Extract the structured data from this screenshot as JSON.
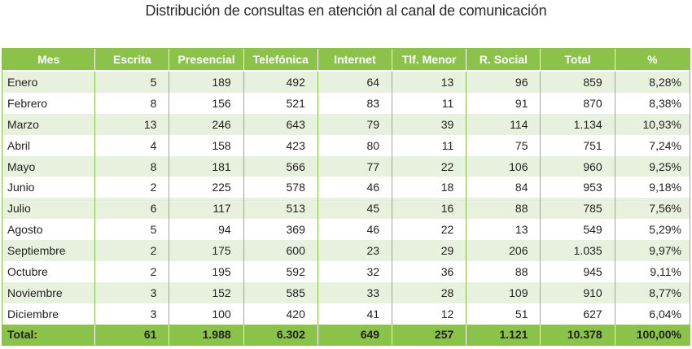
{
  "title": "Distribución de consultas en atención al canal de comunicación",
  "colors": {
    "header_bg": "#8bc34a",
    "header_text": "#ffffff",
    "row_alt_bg": "#e8f1dd",
    "border": "#8bc34a"
  },
  "chart_data": {
    "type": "table",
    "title": "Distribución de consultas en atención al canal de comunicación",
    "columns": [
      "Mes",
      "Escrita",
      "Presencial",
      "Telefónica",
      "Internet",
      "Tlf. Menor",
      "R. Social",
      "Total",
      "%"
    ],
    "rows": [
      [
        "Enero",
        "5",
        "189",
        "492",
        "64",
        "13",
        "96",
        "859",
        "8,28%"
      ],
      [
        "Febrero",
        "8",
        "156",
        "521",
        "83",
        "11",
        "91",
        "870",
        "8,38%"
      ],
      [
        "Marzo",
        "13",
        "246",
        "643",
        "79",
        "39",
        "114",
        "1.134",
        "10,93%"
      ],
      [
        "Abril",
        "4",
        "158",
        "423",
        "80",
        "11",
        "75",
        "751",
        "7,24%"
      ],
      [
        "Mayo",
        "8",
        "181",
        "566",
        "77",
        "22",
        "106",
        "960",
        "9,25%"
      ],
      [
        "Junio",
        "2",
        "225",
        "578",
        "46",
        "18",
        "84",
        "953",
        "9,18%"
      ],
      [
        "Julio",
        "6",
        "117",
        "513",
        "45",
        "16",
        "88",
        "785",
        "7,56%"
      ],
      [
        "Agosto",
        "5",
        "94",
        "369",
        "46",
        "22",
        "13",
        "549",
        "5,29%"
      ],
      [
        "Septiembre",
        "2",
        "175",
        "600",
        "23",
        "29",
        "206",
        "1.035",
        "9,97%"
      ],
      [
        "Octubre",
        "2",
        "195",
        "592",
        "32",
        "36",
        "88",
        "945",
        "9,11%"
      ],
      [
        "Noviembre",
        "3",
        "152",
        "585",
        "33",
        "28",
        "109",
        "910",
        "8,77%"
      ],
      [
        "Diciembre",
        "3",
        "100",
        "420",
        "41",
        "12",
        "51",
        "627",
        "6,04%"
      ]
    ],
    "totals": [
      "Total:",
      "61",
      "1.988",
      "6.302",
      "649",
      "257",
      "1.121",
      "10.378",
      "100,00%"
    ]
  }
}
